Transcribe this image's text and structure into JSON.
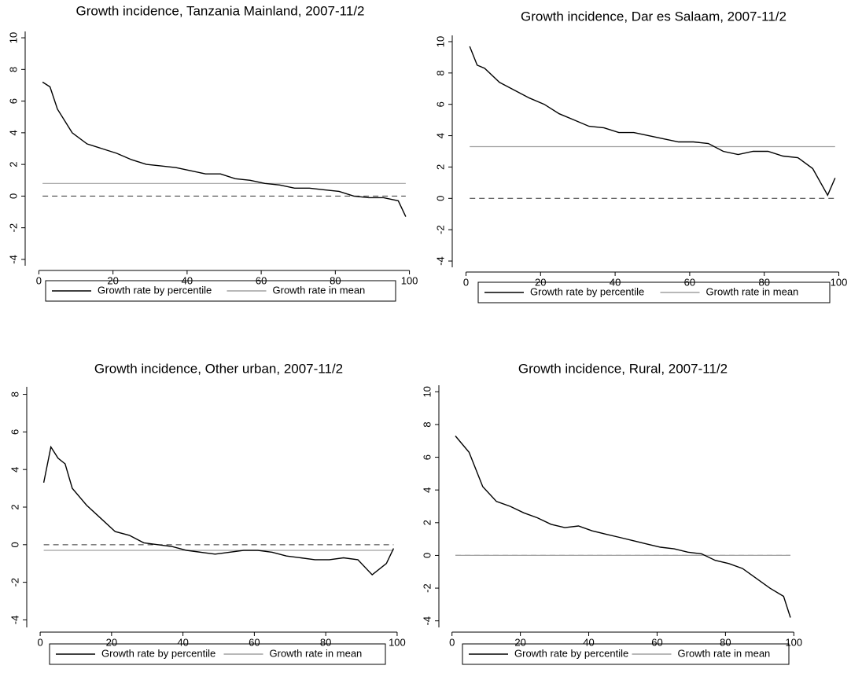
{
  "chart_data": [
    {
      "type": "line",
      "title": "Growth incidence, Tanzania Mainland, 2007-11/2",
      "xlim": [
        -2,
        102
      ],
      "xticks": [
        0,
        20,
        40,
        60,
        80,
        100
      ],
      "ylim": [
        -4.4,
        10.4
      ],
      "yticks": [
        -4,
        -2,
        0,
        2,
        4,
        6,
        8,
        10
      ],
      "hline": 0,
      "legend": "bottom",
      "series": [
        {
          "name": "Growth rate by percentile",
          "color": "#000000",
          "x": [
            1,
            3,
            5,
            9,
            13,
            17,
            21,
            25,
            29,
            33,
            37,
            41,
            45,
            49,
            53,
            57,
            61,
            65,
            69,
            73,
            77,
            81,
            85,
            89,
            93,
            97,
            99
          ],
          "values": [
            7.2,
            6.9,
            5.5,
            4.0,
            3.3,
            3.0,
            2.7,
            2.3,
            2.0,
            1.9,
            1.8,
            1.6,
            1.4,
            1.4,
            1.1,
            1.0,
            0.8,
            0.7,
            0.5,
            0.5,
            0.4,
            0.3,
            0.0,
            -0.1,
            -0.1,
            -0.3,
            -1.3
          ]
        },
        {
          "name": "Growth rate in mean",
          "color": "#a0a0a0",
          "x": [
            1,
            99
          ],
          "values": [
            0.8,
            0.8
          ]
        }
      ]
    },
    {
      "type": "line",
      "title": "Growth incidence, Dar es Salaam, 2007-11/2",
      "xlim": [
        -2,
        102
      ],
      "xticks": [
        0,
        20,
        40,
        60,
        80,
        100
      ],
      "ylim": [
        -4.4,
        10.4
      ],
      "yticks": [
        -4,
        -2,
        0,
        2,
        4,
        6,
        8,
        10
      ],
      "hline": 0,
      "legend": "bottom",
      "series": [
        {
          "name": "Growth rate by percentile",
          "color": "#000000",
          "x": [
            1,
            3,
            5,
            9,
            13,
            17,
            21,
            25,
            29,
            33,
            37,
            41,
            45,
            49,
            53,
            57,
            61,
            65,
            69,
            73,
            77,
            81,
            85,
            89,
            93,
            97,
            99
          ],
          "values": [
            9.7,
            8.5,
            8.3,
            7.4,
            6.9,
            6.4,
            6.0,
            5.4,
            5.0,
            4.6,
            4.5,
            4.2,
            4.2,
            4.0,
            3.8,
            3.6,
            3.6,
            3.5,
            3.0,
            2.8,
            3.0,
            3.0,
            2.7,
            2.6,
            1.9,
            0.2,
            1.3
          ]
        },
        {
          "name": "Growth rate in mean",
          "color": "#a0a0a0",
          "x": [
            1,
            99
          ],
          "values": [
            3.3,
            3.3
          ]
        }
      ]
    },
    {
      "type": "line",
      "title": "Growth incidence, Other urban, 2007-11/2",
      "xlim": [
        -2,
        102
      ],
      "xticks": [
        0,
        20,
        40,
        60,
        80,
        100
      ],
      "ylim": [
        -4.4,
        8.4
      ],
      "yticks": [
        -4,
        -2,
        0,
        2,
        4,
        6,
        8
      ],
      "hline": 0,
      "legend": "bottom",
      "series": [
        {
          "name": "Growth rate by percentile",
          "color": "#000000",
          "x": [
            1,
            3,
            5,
            7,
            9,
            13,
            17,
            21,
            25,
            29,
            33,
            37,
            41,
            45,
            49,
            53,
            57,
            61,
            65,
            69,
            73,
            77,
            81,
            85,
            89,
            93,
            97,
            99
          ],
          "values": [
            3.3,
            5.2,
            4.6,
            4.3,
            3.0,
            2.1,
            1.4,
            0.7,
            0.5,
            0.1,
            0.0,
            -0.1,
            -0.3,
            -0.4,
            -0.5,
            -0.4,
            -0.3,
            -0.3,
            -0.4,
            -0.6,
            -0.7,
            -0.8,
            -0.8,
            -0.7,
            -0.8,
            -1.6,
            -1.0,
            -0.2
          ]
        },
        {
          "name": "Growth rate in mean",
          "color": "#a0a0a0",
          "x": [
            1,
            99
          ],
          "values": [
            -0.3,
            -0.3
          ]
        }
      ]
    },
    {
      "type": "line",
      "title": "Growth incidence, Rural, 2007-11/2",
      "xlim": [
        -2,
        102
      ],
      "xticks": [
        0,
        20,
        40,
        60,
        80,
        100
      ],
      "ylim": [
        -4.4,
        10.4
      ],
      "yticks": [
        -4,
        -2,
        0,
        2,
        4,
        6,
        8,
        10
      ],
      "hline": 0,
      "legend": "bottom",
      "series": [
        {
          "name": "Growth rate by percentile",
          "color": "#000000",
          "x": [
            1,
            5,
            9,
            13,
            17,
            21,
            25,
            29,
            33,
            37,
            41,
            45,
            49,
            53,
            57,
            61,
            65,
            69,
            73,
            77,
            81,
            85,
            89,
            93,
            97,
            99
          ],
          "values": [
            7.3,
            6.3,
            4.2,
            3.3,
            3.0,
            2.6,
            2.3,
            1.9,
            1.7,
            1.8,
            1.5,
            1.3,
            1.1,
            0.9,
            0.7,
            0.5,
            0.4,
            0.2,
            0.1,
            -0.3,
            -0.5,
            -0.8,
            -1.4,
            -2.0,
            -2.5,
            -3.8
          ]
        },
        {
          "name": "Growth rate in mean",
          "color": "#a0a0a0",
          "x": [
            1,
            99
          ],
          "values": [
            0,
            0
          ]
        }
      ]
    }
  ]
}
